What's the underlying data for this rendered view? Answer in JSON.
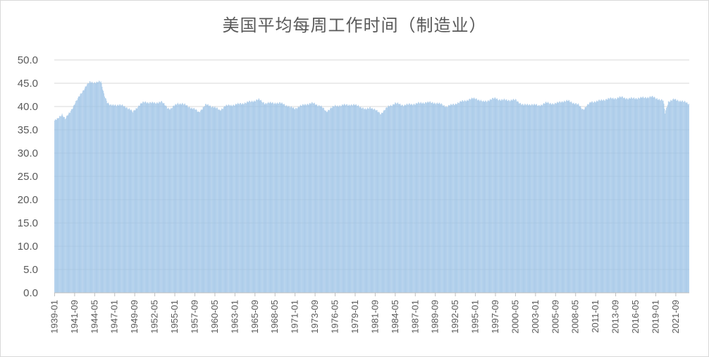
{
  "chart_data": {
    "type": "bar",
    "title": "美国平均每周工作时间（制造业）",
    "xlabel": "",
    "ylabel": "",
    "ylim": [
      0,
      50
    ],
    "yticks": [
      "0.0",
      "5.0",
      "10.0",
      "15.0",
      "20.0",
      "25.0",
      "30.0",
      "35.0",
      "40.0",
      "45.0",
      "50.0"
    ],
    "grid": true,
    "legend": "none",
    "color": "#9dc3e6",
    "x_start": "1939-01",
    "x_end": "2023-06",
    "frequency": "monthly",
    "xtick_labels": [
      "1939-01",
      "1941-09",
      "1944-05",
      "1947-01",
      "1949-09",
      "1952-05",
      "1955-01",
      "1957-09",
      "1960-05",
      "1963-01",
      "1965-09",
      "1968-05",
      "1971-01",
      "1973-09",
      "1976-05",
      "1979-01",
      "1981-09",
      "1984-05",
      "1987-01",
      "1989-09",
      "1992-05",
      "1995-01",
      "1997-09",
      "2000-05",
      "2003-01",
      "2005-09",
      "2008-05",
      "2011-01",
      "2013-09",
      "2016-05",
      "2019-01",
      "2021-09"
    ],
    "series_key_points": [
      [
        "1939-01",
        37.0
      ],
      [
        "1939-06",
        37.3
      ],
      [
        "1940-01",
        38.4
      ],
      [
        "1940-06",
        37.4
      ],
      [
        "1941-01",
        38.6
      ],
      [
        "1941-09",
        40.6
      ],
      [
        "1942-06",
        42.5
      ],
      [
        "1943-03",
        44.4
      ],
      [
        "1943-09",
        45.2
      ],
      [
        "1944-05",
        45.2
      ],
      [
        "1945-03",
        45.3
      ],
      [
        "1945-08",
        42.8
      ],
      [
        "1946-01",
        40.9
      ],
      [
        "1946-06",
        40.2
      ],
      [
        "1947-01",
        40.4
      ],
      [
        "1948-01",
        40.2
      ],
      [
        "1948-06",
        40.0
      ],
      [
        "1949-01",
        39.4
      ],
      [
        "1949-06",
        38.8
      ],
      [
        "1949-09",
        39.3
      ],
      [
        "1950-06",
        40.5
      ],
      [
        "1951-01",
        41.0
      ],
      [
        "1952-05",
        40.7
      ],
      [
        "1953-03",
        41.1
      ],
      [
        "1954-01",
        39.8
      ],
      [
        "1954-06",
        39.5
      ],
      [
        "1955-06",
        40.7
      ],
      [
        "1956-01",
        40.6
      ],
      [
        "1957-09",
        39.4
      ],
      [
        "1958-03",
        38.8
      ],
      [
        "1959-03",
        40.4
      ],
      [
        "1959-09",
        40.2
      ],
      [
        "1960-05",
        39.8
      ],
      [
        "1961-01",
        39.2
      ],
      [
        "1961-09",
        40.1
      ],
      [
        "1963-01",
        40.4
      ],
      [
        "1964-06",
        40.8
      ],
      [
        "1965-09",
        41.3
      ],
      [
        "1966-03",
        41.5
      ],
      [
        "1967-01",
        40.7
      ],
      [
        "1968-05",
        40.8
      ],
      [
        "1969-06",
        40.6
      ],
      [
        "1970-06",
        39.8
      ],
      [
        "1971-01",
        39.6
      ],
      [
        "1971-06",
        39.9
      ],
      [
        "1972-06",
        40.5
      ],
      [
        "1973-06",
        40.7
      ],
      [
        "1974-06",
        40.1
      ],
      [
        "1975-03",
        38.9
      ],
      [
        "1975-09",
        39.6
      ],
      [
        "1976-05",
        40.1
      ],
      [
        "1977-06",
        40.3
      ],
      [
        "1978-06",
        40.4
      ],
      [
        "1979-06",
        40.2
      ],
      [
        "1980-06",
        39.3
      ],
      [
        "1981-01",
        39.9
      ],
      [
        "1982-06",
        38.5
      ],
      [
        "1983-06",
        40.0
      ],
      [
        "1984-05",
        40.7
      ],
      [
        "1985-06",
        40.3
      ],
      [
        "1987-01",
        40.6
      ],
      [
        "1988-06",
        40.9
      ],
      [
        "1989-09",
        40.8
      ],
      [
        "1990-06",
        40.5
      ],
      [
        "1991-03",
        40.0
      ],
      [
        "1992-05",
        40.6
      ],
      [
        "1993-06",
        41.2
      ],
      [
        "1994-06",
        41.6
      ],
      [
        "1995-01",
        41.8
      ],
      [
        "1996-01",
        41.0
      ],
      [
        "1997-09",
        41.8
      ],
      [
        "1998-06",
        41.4
      ],
      [
        "1999-06",
        41.4
      ],
      [
        "2000-05",
        41.4
      ],
      [
        "2001-06",
        40.3
      ],
      [
        "2002-06",
        40.5
      ],
      [
        "2003-06",
        40.2
      ],
      [
        "2004-06",
        40.8
      ],
      [
        "2005-09",
        40.6
      ],
      [
        "2006-06",
        41.1
      ],
      [
        "2007-06",
        41.2
      ],
      [
        "2008-09",
        40.4
      ],
      [
        "2009-05",
        39.4
      ],
      [
        "2010-06",
        41.0
      ],
      [
        "2011-06",
        41.2
      ],
      [
        "2012-06",
        41.6
      ],
      [
        "2013-09",
        41.8
      ],
      [
        "2014-06",
        42.0
      ],
      [
        "2015-06",
        41.7
      ],
      [
        "2016-06",
        41.8
      ],
      [
        "2017-06",
        41.9
      ],
      [
        "2018-06",
        42.1
      ],
      [
        "2019-06",
        41.6
      ],
      [
        "2020-01",
        41.2
      ],
      [
        "2020-04",
        38.6
      ],
      [
        "2020-09",
        41.1
      ],
      [
        "2021-06",
        41.5
      ],
      [
        "2022-06",
        41.2
      ],
      [
        "2023-06",
        40.6
      ]
    ]
  }
}
